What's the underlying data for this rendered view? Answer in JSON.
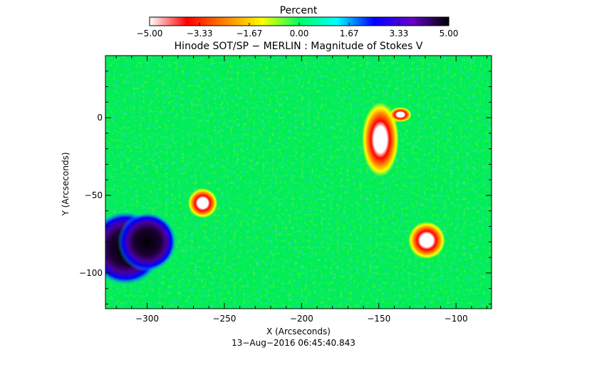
{
  "chart_data": {
    "type": "heatmap",
    "title": "Hinode SOT/SP − MERLIN : Magnitude of Stokes V",
    "xlabel": "X (Arcseconds)",
    "ylabel": "Y (Arcseconds)",
    "timestamp": "13−Aug−2016 06:45:40.843",
    "xlim": [
      -327,
      -77
    ],
    "ylim": [
      -123,
      40
    ],
    "x_ticks": [
      -300,
      -250,
      -200,
      -150,
      -100
    ],
    "x_tick_labels": [
      "−300",
      "−250",
      "−200",
      "−150",
      "−100"
    ],
    "y_ticks": [
      0,
      -50,
      -100
    ],
    "y_tick_labels": [
      "0",
      "−50",
      "−100"
    ],
    "colorbar": {
      "title": "Percent",
      "range": [
        -5.0,
        5.0
      ],
      "ticks": [
        -5.0,
        -3.33,
        -1.67,
        0.0,
        1.67,
        3.33,
        5.0
      ],
      "tick_labels": [
        "−5.00",
        "−3.33",
        "−1.67",
        "0.00",
        "1.67",
        "3.33",
        "5.00"
      ],
      "colormap": [
        "#ffffff",
        "#ff0000",
        "#ff8000",
        "#ffff00",
        "#00ff60",
        "#00ffff",
        "#0000ff",
        "#6600cc",
        "#000000"
      ]
    },
    "background_value": 0.0,
    "features": [
      {
        "kind": "positive",
        "x": -314,
        "y": -84,
        "rx": 10,
        "ry": 10,
        "peak": 5.0
      },
      {
        "kind": "positive",
        "x": -300,
        "y": -80,
        "rx": 8,
        "ry": 8,
        "peak": 4.2
      },
      {
        "kind": "negative",
        "x": -264,
        "y": -55,
        "rx": 4,
        "ry": 4,
        "peak": -5.0
      },
      {
        "kind": "negative",
        "x": -149,
        "y": -14,
        "rx": 5,
        "ry": 10,
        "peak": -5.0
      },
      {
        "kind": "negative",
        "x": -136,
        "y": 2,
        "rx": 3,
        "ry": 2,
        "peak": -5.0
      },
      {
        "kind": "negative",
        "x": -119,
        "y": -79,
        "rx": 5,
        "ry": 5,
        "peak": -5.0
      }
    ]
  }
}
